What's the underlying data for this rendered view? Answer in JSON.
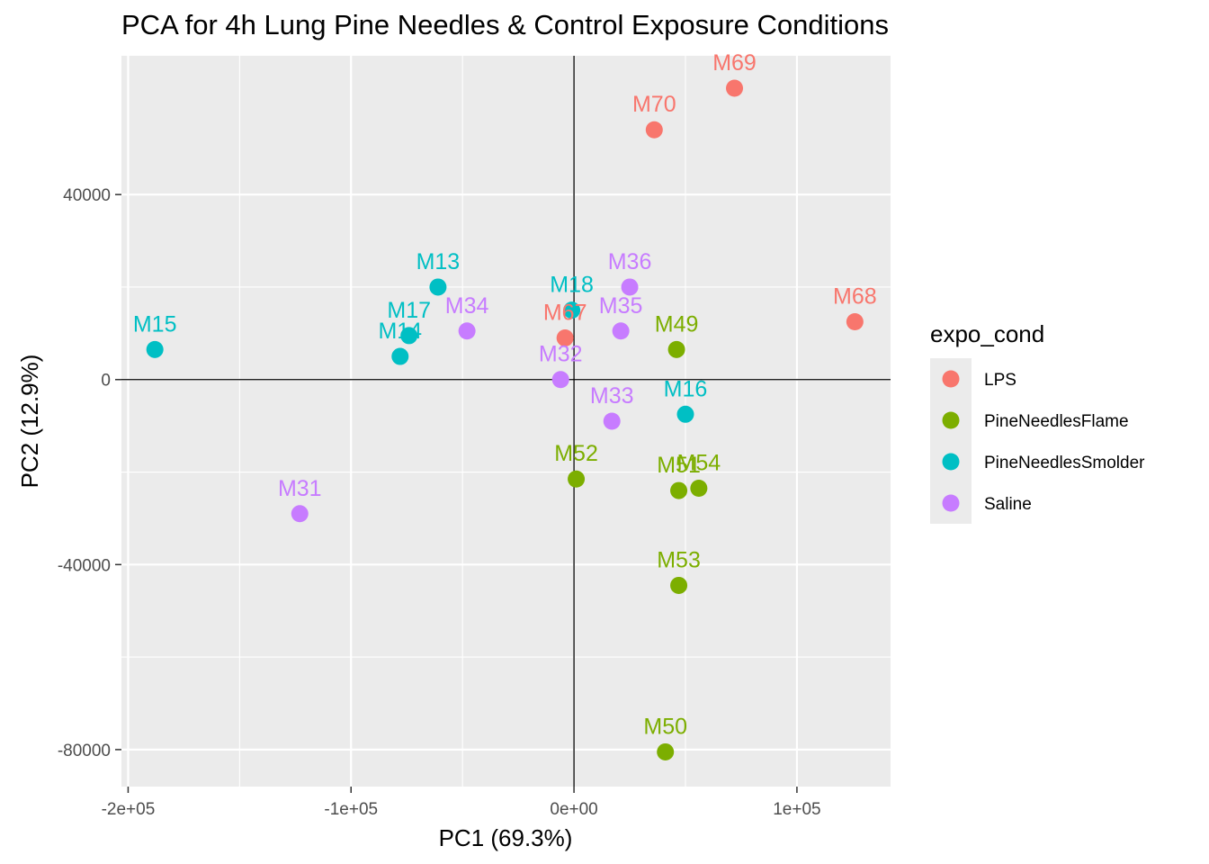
{
  "chart_data": {
    "type": "scatter",
    "title": "PCA for 4h Lung Pine Needles & Control Exposure Conditions",
    "xlabel": "PC1 (69.3%)",
    "ylabel": "PC2 (12.9%)",
    "xlim": [
      -203000,
      142000
    ],
    "ylim": [
      -88000,
      70000
    ],
    "x_ticks": [
      {
        "value": -200000,
        "label": "-2e+05"
      },
      {
        "value": -100000,
        "label": "-1e+05"
      },
      {
        "value": 0,
        "label": "0e+00"
      },
      {
        "value": 100000,
        "label": "1e+05"
      }
    ],
    "y_ticks": [
      {
        "value": 40000,
        "label": "40000"
      },
      {
        "value": 0,
        "label": "0"
      },
      {
        "value": -40000,
        "label": "-40000"
      },
      {
        "value": -80000,
        "label": "-80000"
      }
    ],
    "reference_lines": {
      "x": 0,
      "y": 0
    },
    "grid": true,
    "legend": {
      "title": "expo_cond",
      "position": "right",
      "entries": [
        {
          "name": "LPS",
          "color": "#F8766D"
        },
        {
          "name": "PineNeedlesFlame",
          "color": "#7CAE00"
        },
        {
          "name": "PineNeedlesSmolder",
          "color": "#00BFC4"
        },
        {
          "name": "Saline",
          "color": "#C77CFF"
        }
      ]
    },
    "points": [
      {
        "label": "M69",
        "group": "LPS",
        "x": 72000,
        "y": 63000
      },
      {
        "label": "M70",
        "group": "LPS",
        "x": 36000,
        "y": 54000
      },
      {
        "label": "M68",
        "group": "LPS",
        "x": 126000,
        "y": 12500
      },
      {
        "label": "M67",
        "group": "LPS",
        "x": -4000,
        "y": 9000
      },
      {
        "label": "M13",
        "group": "PineNeedlesSmolder",
        "x": -61000,
        "y": 20000
      },
      {
        "label": "M18",
        "group": "PineNeedlesSmolder",
        "x": -1000,
        "y": 15000
      },
      {
        "label": "M15",
        "group": "PineNeedlesSmolder",
        "x": -188000,
        "y": 6500
      },
      {
        "label": "M17",
        "group": "PineNeedlesSmolder",
        "x": -74000,
        "y": 9500
      },
      {
        "label": "M14",
        "group": "PineNeedlesSmolder",
        "x": -78000,
        "y": 5000
      },
      {
        "label": "M16",
        "group": "PineNeedlesSmolder",
        "x": 50000,
        "y": -7500
      },
      {
        "label": "M36",
        "group": "Saline",
        "x": 25000,
        "y": 20000
      },
      {
        "label": "M34",
        "group": "Saline",
        "x": -48000,
        "y": 10500
      },
      {
        "label": "M35",
        "group": "Saline",
        "x": 21000,
        "y": 10500
      },
      {
        "label": "M32",
        "group": "Saline",
        "x": -6000,
        "y": 0
      },
      {
        "label": "M33",
        "group": "Saline",
        "x": 17000,
        "y": -9000
      },
      {
        "label": "M31",
        "group": "Saline",
        "x": -123000,
        "y": -29000
      },
      {
        "label": "M49",
        "group": "PineNeedlesFlame",
        "x": 46000,
        "y": 6500
      },
      {
        "label": "M52",
        "group": "PineNeedlesFlame",
        "x": 1000,
        "y": -21500
      },
      {
        "label": "M51",
        "group": "PineNeedlesFlame",
        "x": 47000,
        "y": -24000
      },
      {
        "label": "M54",
        "group": "PineNeedlesFlame",
        "x": 56000,
        "y": -23500
      },
      {
        "label": "M53",
        "group": "PineNeedlesFlame",
        "x": 47000,
        "y": -44500
      },
      {
        "label": "M50",
        "group": "PineNeedlesFlame",
        "x": 41000,
        "y": -80500
      }
    ]
  }
}
